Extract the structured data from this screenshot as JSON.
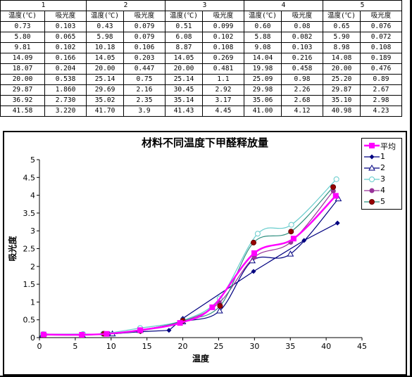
{
  "table": {
    "groups": [
      "1",
      "2",
      "3",
      "4",
      "5"
    ],
    "headers": [
      "温度(℃)",
      "吸光度",
      "温度(℃)",
      "吸光度",
      "温度(℃)",
      "吸光度",
      "温度(℃)",
      "吸光度",
      "温度(℃)",
      "吸光度"
    ],
    "rows": [
      [
        "0.73",
        "0.103",
        "0.43",
        "0.079",
        "0.51",
        "0.099",
        "0.60",
        "0.08",
        "0.65",
        "0.076"
      ],
      [
        "5.80",
        "0.065",
        "5.98",
        "0.079",
        "6.08",
        "0.102",
        "5.88",
        "0.082",
        "5.90",
        "0.072"
      ],
      [
        "9.81",
        "0.102",
        "10.18",
        "0.106",
        "8.87",
        "0.108",
        "9.08",
        "0.103",
        "8.98",
        "0.108"
      ],
      [
        "14.09",
        "0.166",
        "14.05",
        "0.203",
        "14.05",
        "0.269",
        "14.04",
        "0.216",
        "14.08",
        "0.189"
      ],
      [
        "18.07",
        "0.204",
        "20.00",
        "0.447",
        "20.00",
        "0.481",
        "19.98",
        "0.458",
        "20.00",
        "0.476"
      ],
      [
        "20.00",
        "0.538",
        "25.14",
        "0.75",
        "25.14",
        "1.1",
        "25.09",
        "0.98",
        "25.20",
        "0.89"
      ],
      [
        "29.87",
        "1.860",
        "29.69",
        "2.16",
        "30.45",
        "2.92",
        "29.98",
        "2.26",
        "29.87",
        "2.67"
      ],
      [
        "36.92",
        "2.730",
        "35.02",
        "2.35",
        "35.14",
        "3.17",
        "35.06",
        "2.68",
        "35.10",
        "2.98"
      ],
      [
        "41.58",
        "3.220",
        "41.70",
        "3.9",
        "41.43",
        "4.45",
        "41.00",
        "4.12",
        "40.98",
        "4.23"
      ]
    ]
  },
  "chart_data": {
    "type": "scatter",
    "title": "材料不同温度下甲醛释放量",
    "xlabel": "温度",
    "ylabel": "吸光度",
    "xlim": [
      0,
      45
    ],
    "ylim": [
      0,
      5
    ],
    "xticks": [
      "0",
      "5",
      "10",
      "15",
      "20",
      "25",
      "30",
      "35",
      "40",
      "45"
    ],
    "yticks": [
      "0",
      "0.5",
      "1",
      "1.5",
      "2",
      "2.5",
      "3",
      "3.5",
      "4",
      "4.5",
      "5"
    ],
    "grid": false,
    "legend_position": "right",
    "series": [
      {
        "name": "平均",
        "color": "#ff00ff",
        "marker": "square",
        "smooth": true,
        "x": [
          0.58,
          5.93,
          9.38,
          14.06,
          19.61,
          24.11,
          29.97,
          35.46,
          41.34
        ],
        "y": [
          0.087,
          0.08,
          0.105,
          0.209,
          0.413,
          0.852,
          2.374,
          2.782,
          3.984
        ]
      },
      {
        "name": "1",
        "color": "#000080",
        "marker": "diamond",
        "smooth": false,
        "x": [
          0.73,
          5.8,
          9.81,
          14.09,
          18.07,
          20.0,
          29.87,
          36.92,
          41.58
        ],
        "y": [
          0.103,
          0.065,
          0.102,
          0.166,
          0.204,
          0.538,
          1.86,
          2.73,
          3.22
        ]
      },
      {
        "name": "2",
        "color": "#000080",
        "marker": "triangle",
        "smooth": true,
        "x": [
          0.43,
          5.98,
          10.18,
          14.05,
          20.0,
          25.14,
          29.69,
          35.02,
          41.7
        ],
        "y": [
          0.079,
          0.079,
          0.106,
          0.203,
          0.447,
          0.75,
          2.16,
          2.35,
          3.9
        ]
      },
      {
        "name": "3",
        "color": "#66cccc",
        "marker": "circle-open",
        "smooth": true,
        "x": [
          0.51,
          6.08,
          8.87,
          14.05,
          20.0,
          25.14,
          30.45,
          35.14,
          41.43
        ],
        "y": [
          0.099,
          0.102,
          0.108,
          0.269,
          0.481,
          1.1,
          2.92,
          3.17,
          4.45
        ]
      },
      {
        "name": "4",
        "color": "#993399",
        "marker": "circle",
        "smooth": true,
        "x": [
          0.6,
          5.88,
          9.08,
          14.04,
          19.98,
          25.09,
          29.98,
          35.06,
          41.0
        ],
        "y": [
          0.08,
          0.082,
          0.103,
          0.216,
          0.458,
          0.98,
          2.26,
          2.68,
          4.12
        ]
      },
      {
        "name": "5",
        "color": "#2f8f7f",
        "marker": "circle-red",
        "smooth": true,
        "x": [
          0.65,
          5.9,
          8.98,
          14.08,
          20.0,
          25.2,
          29.87,
          35.1,
          40.98
        ],
        "y": [
          0.076,
          0.072,
          0.108,
          0.189,
          0.476,
          0.89,
          2.67,
          2.98,
          4.23
        ]
      }
    ]
  }
}
